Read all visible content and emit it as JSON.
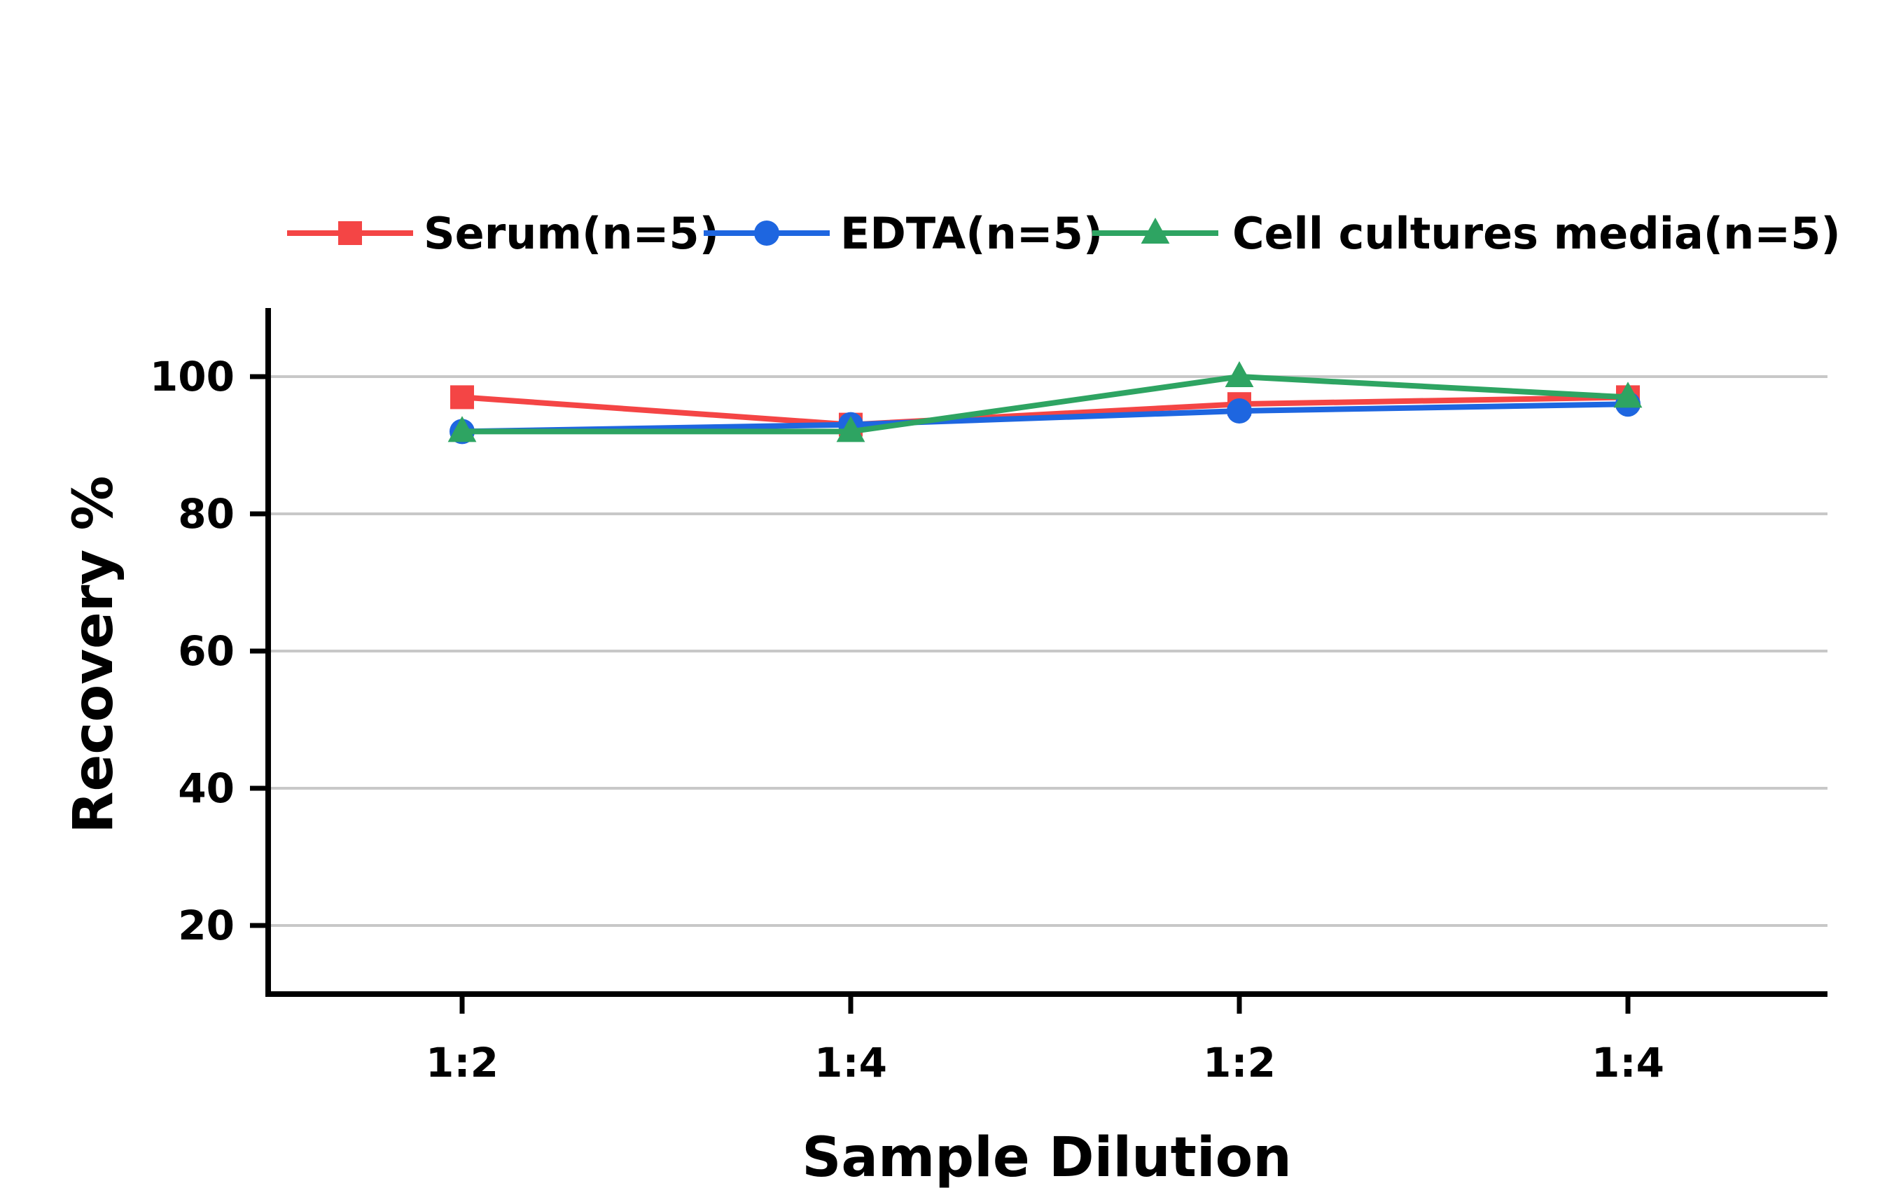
{
  "chart_data": {
    "type": "line",
    "title": "",
    "xlabel": "Sample Dilution",
    "ylabel": "Recovery %",
    "categories": [
      "1:2",
      "1:4",
      "1:2",
      "1:4"
    ],
    "ylim": [
      10,
      110
    ],
    "yticks": [
      20,
      40,
      60,
      80,
      100
    ],
    "grid": "horizontal",
    "legend_position": "top",
    "series": [
      {
        "name": "Serum(n=5)",
        "values": [
          97,
          93,
          96,
          97
        ],
        "color": "#f44545",
        "marker": "square"
      },
      {
        "name": "EDTA(n=5)",
        "values": [
          92,
          93,
          95,
          96
        ],
        "color": "#1e66e0",
        "marker": "circle"
      },
      {
        "name": "Cell cultures media(n=5)",
        "values": [
          92,
          92,
          100,
          97
        ],
        "color": "#2ea462",
        "marker": "triangle"
      }
    ]
  }
}
